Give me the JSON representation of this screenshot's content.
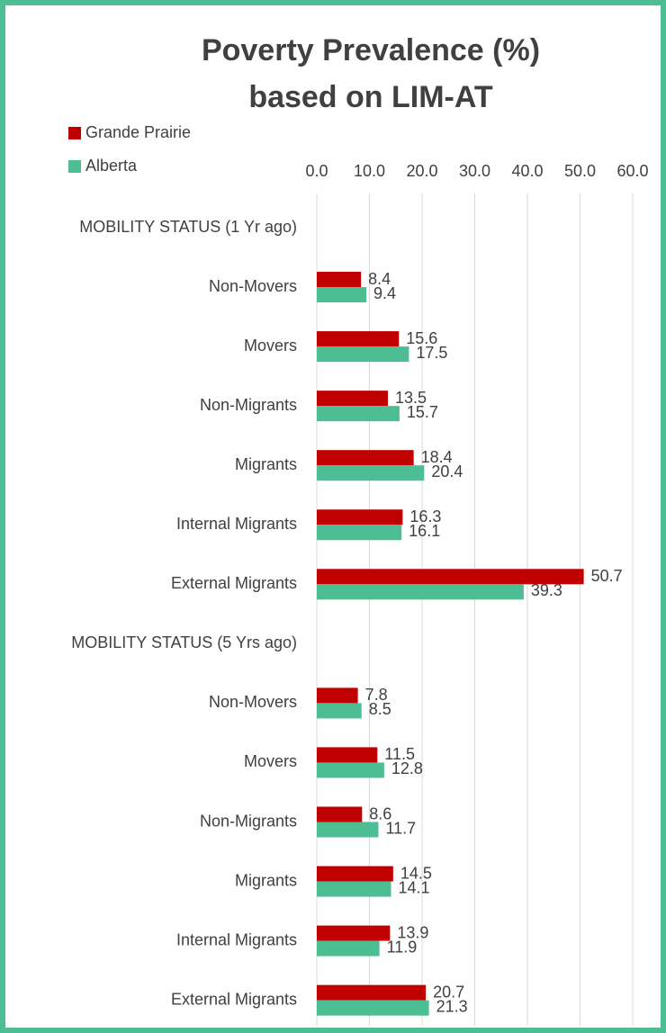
{
  "chart_data": {
    "type": "bar",
    "orientation": "horizontal",
    "title": [
      "Poverty Prevalence (%)",
      "based on LIM-AT"
    ],
    "categories": [
      "MOBILITY STATUS (1 Yr ago)",
      "Non-Movers",
      "Movers",
      "Non-Migrants",
      "Migrants",
      "Internal Migrants",
      "External  Migrants",
      "MOBILITY STATUS  (5 Yrs ago)",
      "Non-Movers",
      "Movers",
      "Non-Migrants",
      "Migrants",
      "Internal Migrants",
      "External Migrants"
    ],
    "series": [
      {
        "name": "Grande Prairie",
        "color": "#c00000",
        "values": [
          null,
          8.4,
          15.6,
          13.5,
          18.4,
          16.3,
          50.7,
          null,
          7.8,
          11.5,
          8.6,
          14.5,
          13.9,
          20.7
        ]
      },
      {
        "name": "Alberta",
        "color": "#4dbd94",
        "values": [
          null,
          9.4,
          17.5,
          15.7,
          20.4,
          16.1,
          39.3,
          null,
          8.5,
          12.8,
          11.7,
          14.1,
          11.9,
          21.3
        ]
      }
    ],
    "xlim": [
      0,
      60
    ],
    "xticks": [
      {
        "value": 0,
        "label": "0.0"
      },
      {
        "value": 10,
        "label": "10.0"
      },
      {
        "value": 20,
        "label": "20.0"
      },
      {
        "value": 30,
        "label": "30.0"
      },
      {
        "value": 40,
        "label": "40.0"
      },
      {
        "value": 50,
        "label": "50.0"
      },
      {
        "value": 60,
        "label": "60.0"
      }
    ],
    "grid": true,
    "legend": "top-left",
    "border_color": "#4dbd94"
  }
}
